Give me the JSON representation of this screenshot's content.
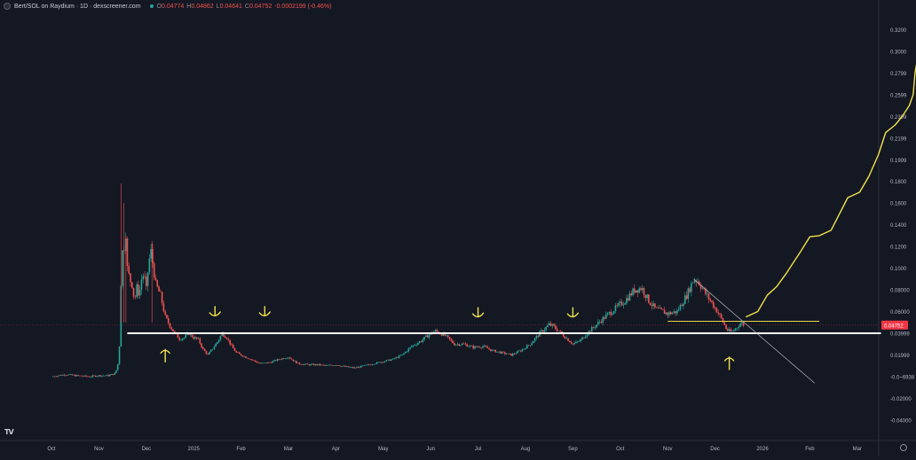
{
  "header": {
    "title": "Bert/SOL on Raydium · 1D · dexscreener.com",
    "ohlc": [
      {
        "label": "O",
        "value": "0.04774"
      },
      {
        "label": "H",
        "value": "0.04862"
      },
      {
        "label": "L",
        "value": "0.04641"
      },
      {
        "label": "C",
        "value": "0.04752"
      },
      {
        "label": "",
        "value": "-0.0002199 (-0.46%)"
      }
    ]
  },
  "chart_data": {
    "type": "candlestick",
    "y_axis_labels": [
      "0.3200",
      "0.3000",
      "0.2799",
      "0.2599",
      "0.2399",
      "0.2199",
      "0.1999",
      "0.1800",
      "0.1600",
      "0.1400",
      "0.1200",
      "0.1000",
      "0.08000",
      "0.06000",
      "0.03999",
      "0.01999",
      "-0.0~6938",
      "-0.02000",
      "-0.04000"
    ],
    "y_label_values": [
      0.32,
      0.3,
      0.2799,
      0.2599,
      0.2399,
      0.2199,
      0.1999,
      0.18,
      0.16,
      0.14,
      0.12,
      0.1,
      0.08,
      0.06,
      0.03999,
      0.01999,
      0.0,
      -0.02,
      -0.04
    ],
    "ylim": [
      -0.045,
      0.335
    ],
    "last_price": {
      "label": "0.04752",
      "value": 0.04752,
      "color": "#f23645"
    },
    "x_axis_labels": [
      {
        "label": "Oct",
        "month": 0
      },
      {
        "label": "Nov",
        "month": 1
      },
      {
        "label": "Dec",
        "month": 2
      },
      {
        "label": "2025",
        "month": 3
      },
      {
        "label": "Feb",
        "month": 4
      },
      {
        "label": "Mar",
        "month": 5
      },
      {
        "label": "Apr",
        "month": 6
      },
      {
        "label": "May",
        "month": 7
      },
      {
        "label": "Jun",
        "month": 8
      },
      {
        "label": "Jul",
        "month": 9
      },
      {
        "label": "Aug",
        "month": 10
      },
      {
        "label": "Sep",
        "month": 11
      },
      {
        "label": "Oct",
        "month": 12
      },
      {
        "label": "Nov",
        "month": 13
      },
      {
        "label": "Dec",
        "month": 14
      },
      {
        "label": "2026",
        "month": 15
      },
      {
        "label": "Feb",
        "month": 16
      },
      {
        "label": "Mar",
        "month": 17
      }
    ],
    "price_path": [
      [
        0.0,
        0.0
      ],
      [
        0.3,
        0.002
      ],
      [
        0.5,
        0.001
      ],
      [
        0.8,
        0.0
      ],
      [
        1.0,
        0.001
      ],
      [
        1.2,
        0.001
      ],
      [
        1.35,
        0.003
      ],
      [
        1.42,
        0.015
      ],
      [
        1.45,
        0.045
      ],
      [
        1.48,
        0.12
      ],
      [
        1.52,
        0.11
      ],
      [
        1.56,
        0.14
      ],
      [
        1.6,
        0.1
      ],
      [
        1.65,
        0.09
      ],
      [
        1.7,
        0.085
      ],
      [
        1.75,
        0.07
      ],
      [
        1.8,
        0.082
      ],
      [
        1.85,
        0.075
      ],
      [
        1.9,
        0.09
      ],
      [
        1.95,
        0.095
      ],
      [
        2.0,
        0.08
      ],
      [
        2.05,
        0.105
      ],
      [
        2.1,
        0.115
      ],
      [
        2.15,
        0.1
      ],
      [
        2.2,
        0.085
      ],
      [
        2.3,
        0.075
      ],
      [
        2.4,
        0.055
      ],
      [
        2.5,
        0.047
      ],
      [
        2.6,
        0.04
      ],
      [
        2.7,
        0.035
      ],
      [
        2.8,
        0.036
      ],
      [
        2.9,
        0.04
      ],
      [
        3.0,
        0.036
      ],
      [
        3.1,
        0.034
      ],
      [
        3.2,
        0.025
      ],
      [
        3.3,
        0.02
      ],
      [
        3.4,
        0.026
      ],
      [
        3.5,
        0.032
      ],
      [
        3.6,
        0.04
      ],
      [
        3.7,
        0.036
      ],
      [
        3.8,
        0.028
      ],
      [
        3.9,
        0.022
      ],
      [
        4.0,
        0.02
      ],
      [
        4.2,
        0.016
      ],
      [
        4.4,
        0.012
      ],
      [
        4.6,
        0.013
      ],
      [
        4.8,
        0.016
      ],
      [
        5.0,
        0.018
      ],
      [
        5.2,
        0.012
      ],
      [
        5.4,
        0.011
      ],
      [
        5.6,
        0.011
      ],
      [
        5.8,
        0.01
      ],
      [
        6.0,
        0.011
      ],
      [
        6.2,
        0.009
      ],
      [
        6.4,
        0.008
      ],
      [
        6.6,
        0.01
      ],
      [
        6.8,
        0.012
      ],
      [
        7.0,
        0.014
      ],
      [
        7.2,
        0.016
      ],
      [
        7.4,
        0.02
      ],
      [
        7.6,
        0.028
      ],
      [
        7.8,
        0.033
      ],
      [
        8.0,
        0.04
      ],
      [
        8.1,
        0.042
      ],
      [
        8.3,
        0.038
      ],
      [
        8.5,
        0.03
      ],
      [
        8.7,
        0.03
      ],
      [
        8.9,
        0.027
      ],
      [
        9.1,
        0.028
      ],
      [
        9.3,
        0.024
      ],
      [
        9.5,
        0.022
      ],
      [
        9.7,
        0.02
      ],
      [
        9.9,
        0.024
      ],
      [
        10.1,
        0.03
      ],
      [
        10.3,
        0.04
      ],
      [
        10.5,
        0.048
      ],
      [
        10.6,
        0.046
      ],
      [
        10.7,
        0.042
      ],
      [
        10.8,
        0.038
      ],
      [
        10.9,
        0.034
      ],
      [
        11.0,
        0.03
      ],
      [
        11.15,
        0.033
      ],
      [
        11.3,
        0.04
      ],
      [
        11.5,
        0.048
      ],
      [
        11.7,
        0.056
      ],
      [
        11.9,
        0.063
      ],
      [
        12.1,
        0.07
      ],
      [
        12.3,
        0.08
      ],
      [
        12.45,
        0.082
      ],
      [
        12.6,
        0.07
      ],
      [
        12.75,
        0.062
      ],
      [
        12.9,
        0.06
      ],
      [
        13.0,
        0.058
      ],
      [
        13.2,
        0.06
      ],
      [
        13.4,
        0.075
      ],
      [
        13.55,
        0.09
      ],
      [
        13.65,
        0.088
      ],
      [
        13.75,
        0.08
      ],
      [
        13.9,
        0.07
      ],
      [
        14.05,
        0.06
      ],
      [
        14.15,
        0.052
      ],
      [
        14.25,
        0.043
      ],
      [
        14.35,
        0.041
      ],
      [
        14.45,
        0.045
      ],
      [
        14.55,
        0.05
      ],
      [
        14.62,
        0.047
      ]
    ],
    "drawings": {
      "support_line": {
        "value": 0.04,
        "from_month": 1.6,
        "to_month": 17.5,
        "color": "#ffffff"
      },
      "resistance_line": {
        "value": 0.051,
        "from_month": 13.0,
        "to_month": 16.2,
        "color": "#e5d74a"
      },
      "trendline": {
        "from": [
          13.55,
          0.09
        ],
        "to": [
          16.1,
          -0.006
        ],
        "color": "#b2b5be"
      },
      "projection": {
        "color": "#f1e34a",
        "points": [
          [
            14.65,
            0.055
          ],
          [
            14.9,
            0.06
          ],
          [
            15.1,
            0.075
          ],
          [
            15.3,
            0.083
          ],
          [
            15.5,
            0.095
          ],
          [
            15.8,
            0.115
          ],
          [
            16.0,
            0.129
          ],
          [
            16.2,
            0.13
          ],
          [
            16.45,
            0.135
          ],
          [
            16.8,
            0.165
          ],
          [
            17.05,
            0.17
          ],
          [
            17.25,
            0.185
          ],
          [
            17.45,
            0.205
          ],
          [
            17.6,
            0.225
          ],
          [
            17.8,
            0.232
          ],
          [
            17.95,
            0.24
          ],
          [
            18.1,
            0.25
          ],
          [
            18.18,
            0.26
          ],
          [
            18.22,
            0.28
          ],
          [
            18.3,
            0.3
          ]
        ]
      },
      "markers": [
        {
          "type": "arrow-up",
          "month": 2.4,
          "value": 0.025
        },
        {
          "type": "check-down",
          "month": 3.45,
          "value": 0.058
        },
        {
          "type": "check-down",
          "month": 4.5,
          "value": 0.058
        },
        {
          "type": "check-down",
          "month": 9.0,
          "value": 0.057
        },
        {
          "type": "check-down",
          "month": 11.0,
          "value": 0.057
        },
        {
          "type": "arrow-up",
          "month": 14.3,
          "value": 0.018
        }
      ]
    }
  },
  "colors": {
    "background": "#141823",
    "up": "#26a69a",
    "down": "#ef5350",
    "axis_text": "#b2b5be",
    "grid": "#1d2130"
  },
  "branding": {
    "tv_logo": "TV",
    "settings_icon": "gear-icon"
  }
}
